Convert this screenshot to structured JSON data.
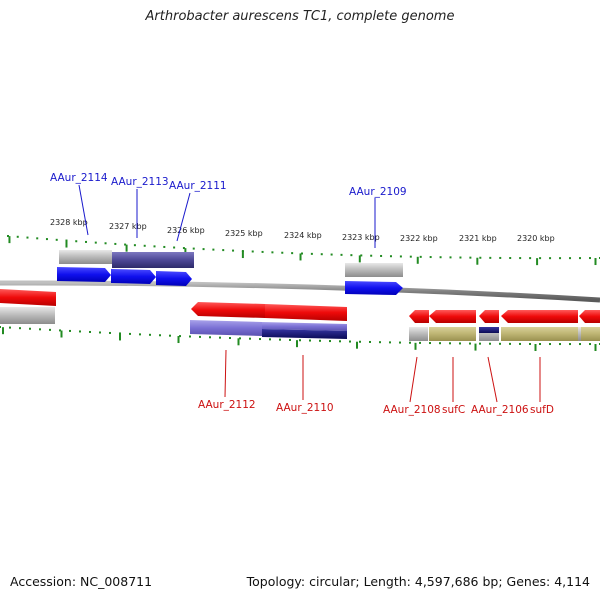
{
  "title": "Arthrobacter aurescens TC1, complete genome",
  "footer": {
    "accession": "Accession: NC_008711",
    "summary": "Topology: circular; Length: 4,597,686 bp; Genes: 4,114"
  },
  "scale": {
    "unit": "kbp",
    "ticks": [
      "2328 kbp",
      "2327 kbp",
      "2326 kbp",
      "2325 kbp",
      "2324 kbp",
      "2323 kbp",
      "2322 kbp",
      "2321 kbp",
      "2320 kbp"
    ]
  },
  "genes_top": [
    {
      "name": "AAur_2114"
    },
    {
      "name": "AAur_2113"
    },
    {
      "name": "AAur_2111"
    },
    {
      "name": "AAur_2109"
    }
  ],
  "genes_bottom": [
    {
      "name": "AAur_2112"
    },
    {
      "name": "AAur_2110"
    },
    {
      "name": "AAur_2108"
    },
    {
      "name": "sufC"
    },
    {
      "name": "AAur_2106"
    },
    {
      "name": "sufD"
    }
  ],
  "colors": {
    "forward_label": "#1a1acc",
    "reverse_label": "#cc1111",
    "forward_gene": "#1010ee",
    "reverse_gene": "#ee0a0a",
    "tick": "#228b22",
    "backbone": "#8a8a8a"
  }
}
